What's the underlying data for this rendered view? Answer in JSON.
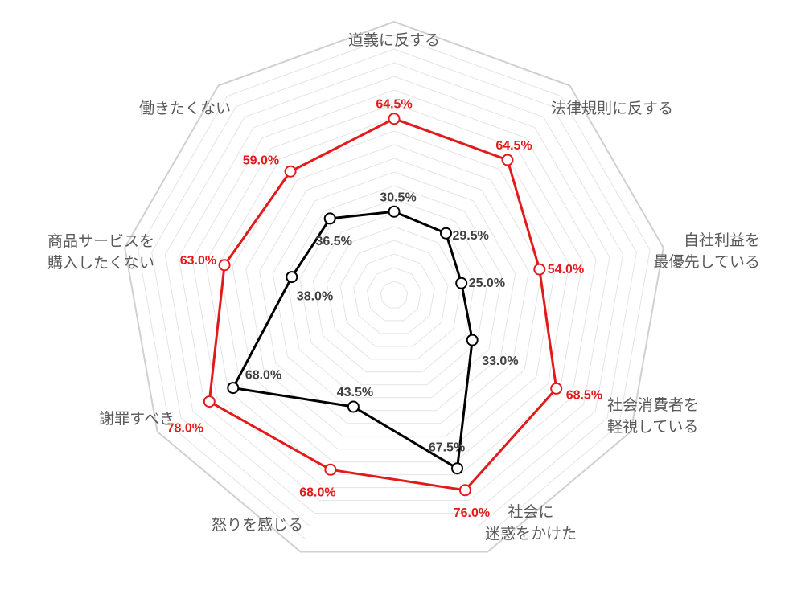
{
  "chart_data": {
    "type": "radar",
    "axes": [
      "道義に反する",
      "法律規則に反する",
      "自社利益を\n最優先している",
      "社会消費者を\n軽視している",
      "社会に\n迷惑をかけた",
      "怒りを感じる",
      "謝罪すべき",
      "商品サービスを\n購入したくない",
      "働きたくない"
    ],
    "rmax": 100,
    "grid": true,
    "series": [
      {
        "color": "#e31a1c",
        "values": [
          64.5,
          64.5,
          54.0,
          68.5,
          76.0,
          68.0,
          78.0,
          63.0,
          59.0
        ],
        "labels": [
          "64.5%",
          "64.5%",
          "54.0%",
          "68.5%",
          "76.0%",
          "68.0%",
          "78.0%",
          "63.0%",
          "59.0%"
        ]
      },
      {
        "color": "#000000",
        "label_color": "#404040",
        "values": [
          30.5,
          29.5,
          25.0,
          33.0,
          67.5,
          43.5,
          68.0,
          38.0,
          36.5
        ],
        "labels": [
          "30.5%",
          "29.5%",
          "25.0%",
          "33.0%",
          "67.5%",
          "43.5%",
          "68.0%",
          "38.0%",
          "36.5%"
        ]
      }
    ]
  }
}
